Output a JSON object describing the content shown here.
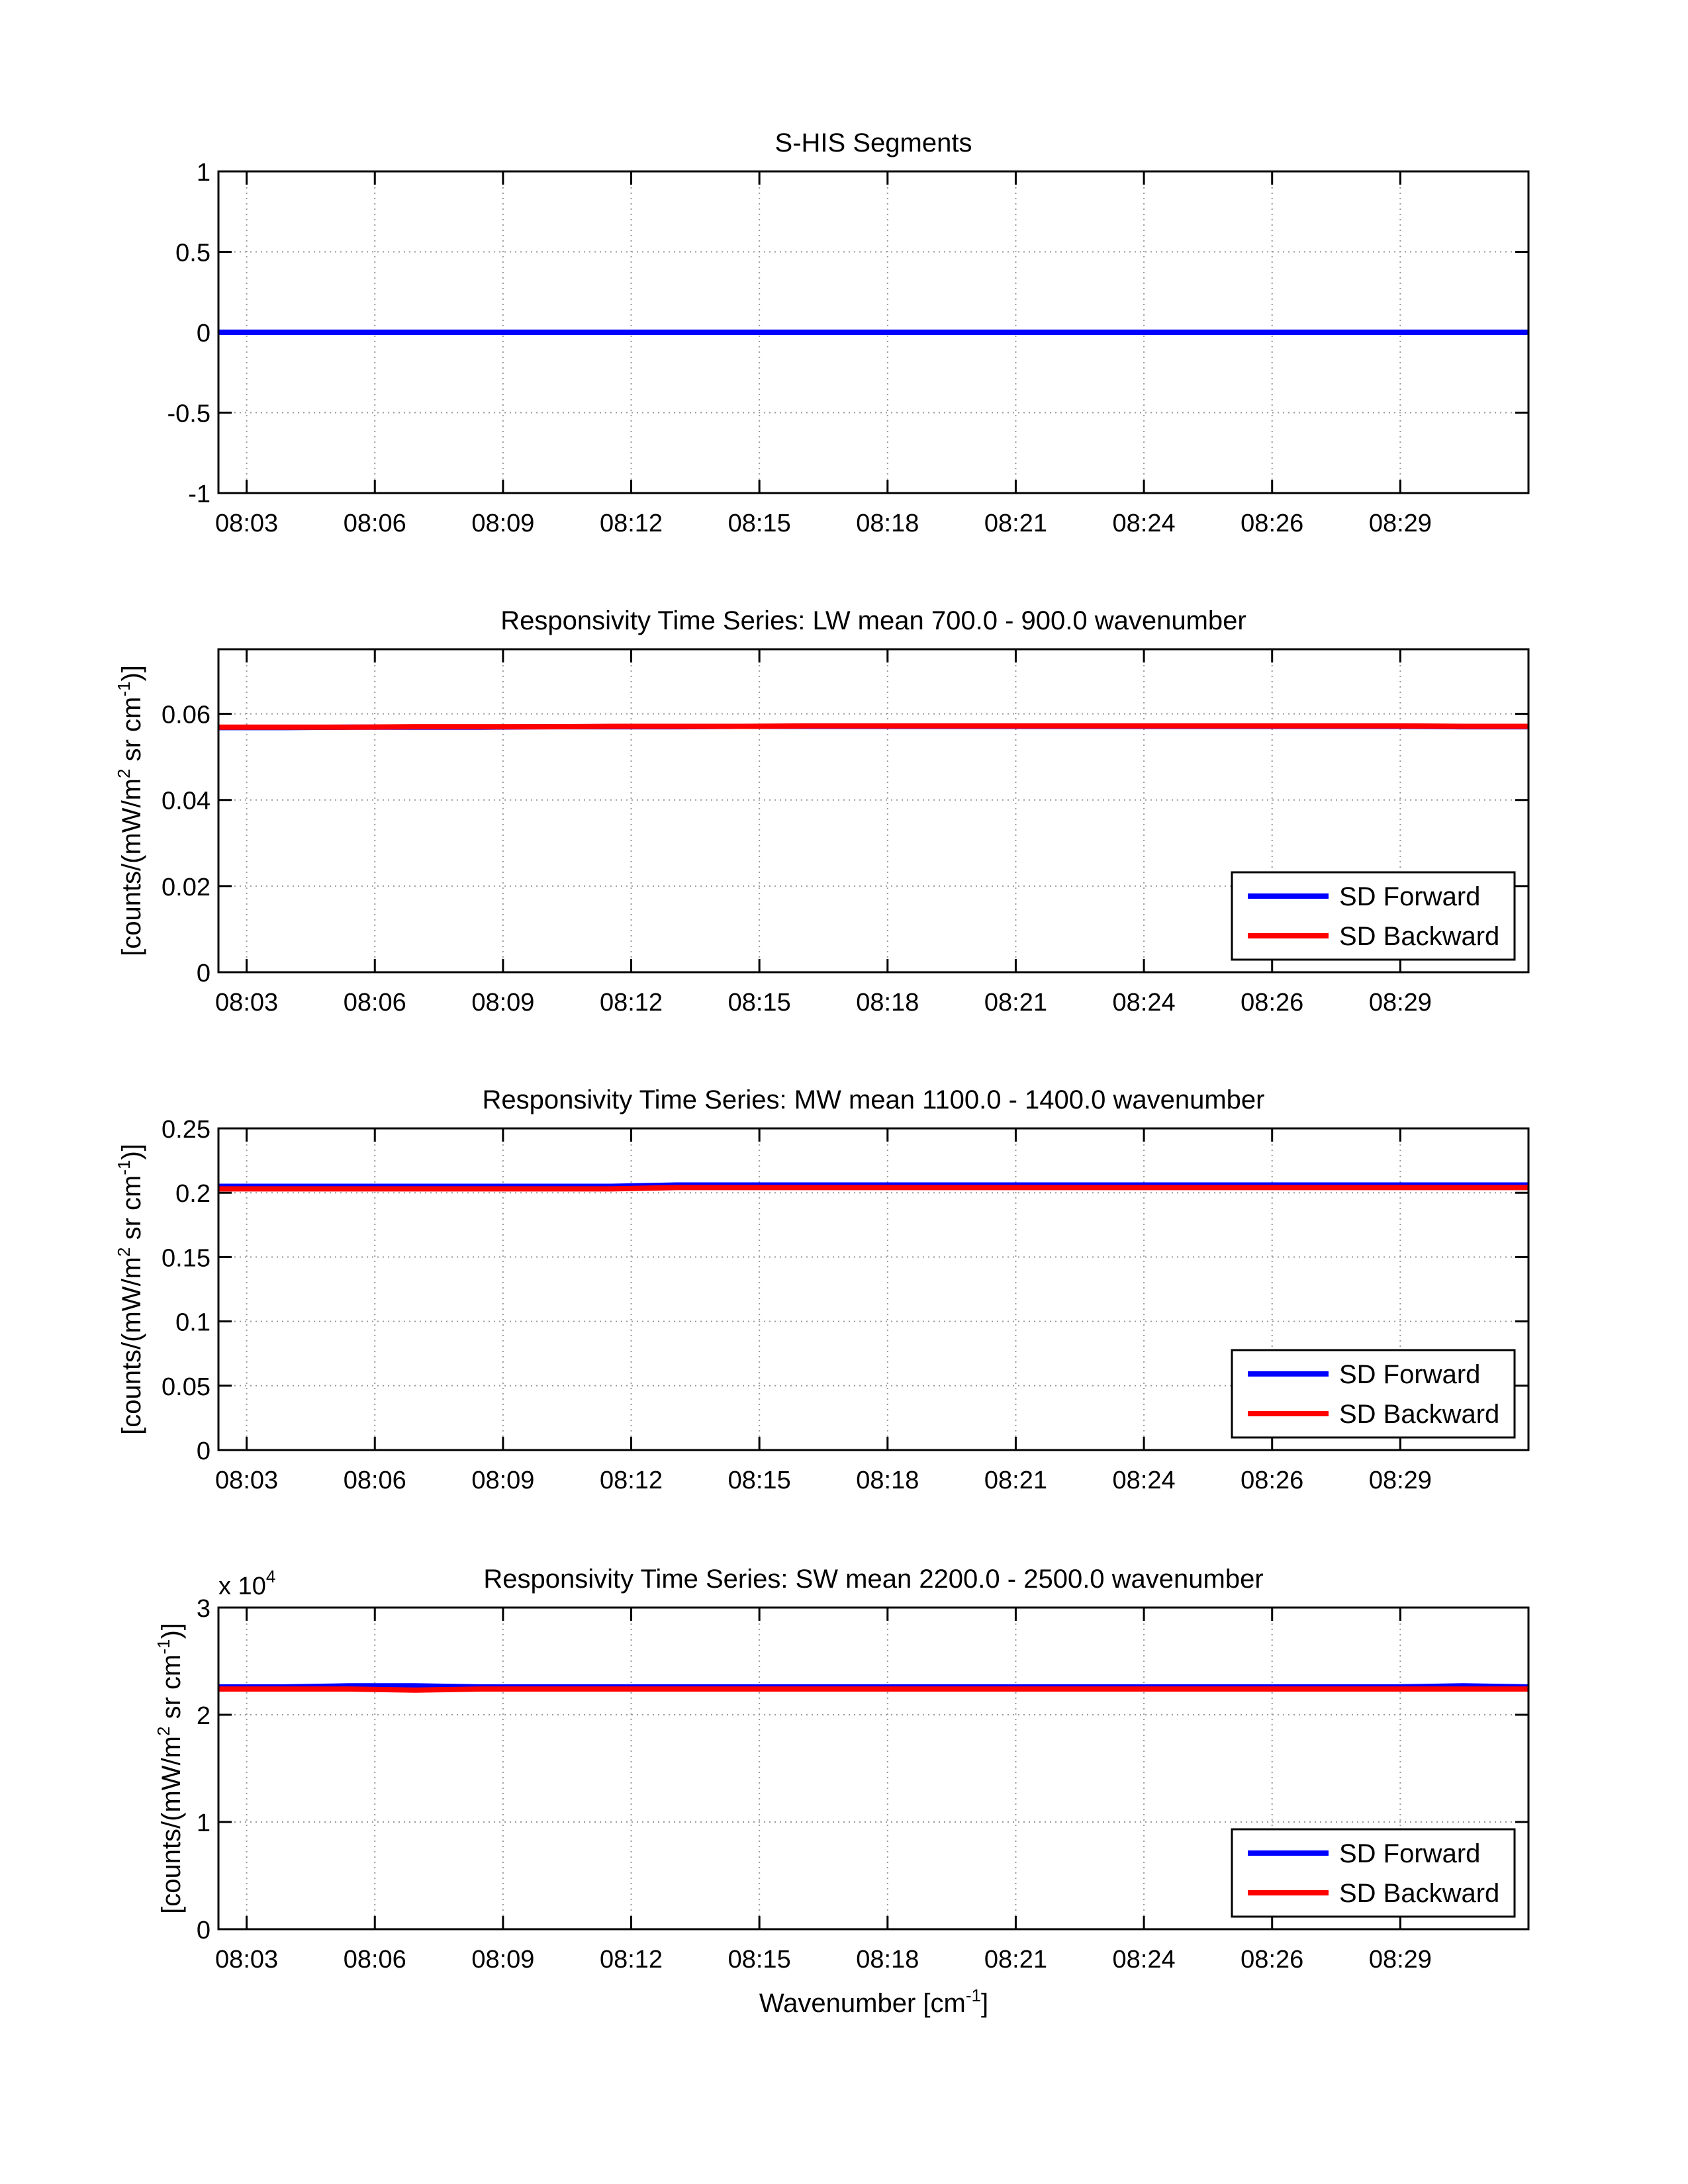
{
  "x_tick_labels": [
    "08:03",
    "08:06",
    "08:09",
    "08:12",
    "08:15",
    "08:18",
    "08:21",
    "08:24",
    "08:26",
    "08:29"
  ],
  "xlabel": "Wavenumber [cm",
  "xlabel_sup": "-1",
  "xlabel_end": "]",
  "colors": {
    "forward": "#0000ff",
    "backward": "#ff0000",
    "segments": "#0000ff"
  },
  "legend": {
    "forward": "SD Forward",
    "backward": "SD Backward"
  },
  "chart_data": [
    {
      "type": "line",
      "title": "S-HIS Segments",
      "ylabel": "",
      "ylim": [
        -1,
        1
      ],
      "xlim": [
        -0.22,
        10.0
      ],
      "yticks": [
        "-1",
        "-0.5",
        "0",
        "0.5",
        "1"
      ],
      "ytick_values": [
        -1,
        -0.5,
        0,
        0.5,
        1
      ],
      "series": [
        {
          "name": "segments",
          "color": "#0000ff",
          "values": [
            0,
            0,
            0,
            0,
            0,
            0,
            0,
            0,
            0,
            0,
            0,
            0,
            0,
            0,
            0,
            0,
            0,
            0,
            0,
            0,
            0
          ]
        }
      ],
      "legend": false
    },
    {
      "type": "line",
      "title": "Responsivity Time Series: LW mean 700.0 - 900.0 wavenumber",
      "ylabel": "[counts/(mW/m",
      "ylabel_sup1": "2",
      "ylabel_mid": " sr cm",
      "ylabel_sup2": "-1",
      "ylabel_end": ")]",
      "ylim": [
        0,
        0.075
      ],
      "xlim": [
        -0.22,
        10.0
      ],
      "yticks": [
        "0",
        "0.02",
        "0.04",
        "0.06"
      ],
      "ytick_values": [
        0,
        0.02,
        0.04,
        0.06
      ],
      "series": [
        {
          "name": "SD Forward",
          "color": "#0000ff",
          "values": [
            0.0568,
            0.0568,
            0.0569,
            0.0569,
            0.0569,
            0.057,
            0.057,
            0.057,
            0.0571,
            0.0571,
            0.0571,
            0.0571,
            0.0571,
            0.0571,
            0.0571,
            0.0571,
            0.0571,
            0.0571,
            0.0571,
            0.057,
            0.057
          ]
        },
        {
          "name": "SD Backward",
          "color": "#ff0000",
          "values": [
            0.0569,
            0.0569,
            0.0569,
            0.057,
            0.057,
            0.057,
            0.0571,
            0.0571,
            0.0571,
            0.0572,
            0.0572,
            0.0572,
            0.0572,
            0.0572,
            0.0572,
            0.0572,
            0.0572,
            0.0572,
            0.0572,
            0.0571,
            0.0571
          ]
        }
      ],
      "legend": true
    },
    {
      "type": "line",
      "title": "Responsivity Time Series: MW mean 1100.0 - 1400.0 wavenumber",
      "ylabel": "[counts/(mW/m",
      "ylabel_sup1": "2",
      "ylabel_mid": " sr cm",
      "ylabel_sup2": "-1",
      "ylabel_end": ")]",
      "ylim": [
        0,
        0.25
      ],
      "xlim": [
        -0.22,
        10.0
      ],
      "yticks": [
        "0",
        "0.05",
        "0.1",
        "0.15",
        "0.2",
        "0.25"
      ],
      "ytick_values": [
        0,
        0.05,
        0.1,
        0.15,
        0.2,
        0.25
      ],
      "series": [
        {
          "name": "SD Forward",
          "color": "#0000ff",
          "values": [
            0.205,
            0.205,
            0.205,
            0.205,
            0.205,
            0.205,
            0.205,
            0.206,
            0.206,
            0.206,
            0.206,
            0.206,
            0.206,
            0.206,
            0.206,
            0.206,
            0.206,
            0.206,
            0.206,
            0.206,
            0.206
          ]
        },
        {
          "name": "SD Backward",
          "color": "#ff0000",
          "values": [
            0.203,
            0.203,
            0.203,
            0.203,
            0.203,
            0.203,
            0.203,
            0.204,
            0.204,
            0.204,
            0.204,
            0.204,
            0.204,
            0.204,
            0.204,
            0.204,
            0.204,
            0.204,
            0.204,
            0.204,
            0.204
          ]
        }
      ],
      "legend": true
    },
    {
      "type": "line",
      "title": "Responsivity Time Series: SW mean 2200.0 - 2500.0 wavenumber",
      "ylabel": "[counts/(mW/m",
      "ylabel_sup1": "2",
      "ylabel_mid": " sr cm",
      "ylabel_sup2": "-1",
      "ylabel_end": ")]",
      "y_multiplier": "x 10",
      "y_multiplier_exp": "4",
      "ylim": [
        0,
        3
      ],
      "xlim": [
        -0.22,
        10.0
      ],
      "yticks": [
        "0",
        "1",
        "2",
        "3"
      ],
      "ytick_values": [
        0,
        1,
        2,
        3
      ],
      "series": [
        {
          "name": "SD Forward",
          "color": "#0000ff",
          "values": [
            2.26,
            2.26,
            2.27,
            2.27,
            2.26,
            2.26,
            2.26,
            2.26,
            2.26,
            2.26,
            2.26,
            2.26,
            2.26,
            2.26,
            2.26,
            2.26,
            2.26,
            2.26,
            2.26,
            2.27,
            2.26
          ]
        },
        {
          "name": "SD Backward",
          "color": "#ff0000",
          "values": [
            2.24,
            2.24,
            2.24,
            2.23,
            2.24,
            2.24,
            2.24,
            2.24,
            2.24,
            2.24,
            2.24,
            2.24,
            2.24,
            2.24,
            2.24,
            2.24,
            2.24,
            2.24,
            2.24,
            2.24,
            2.24
          ]
        }
      ],
      "legend": true
    }
  ]
}
